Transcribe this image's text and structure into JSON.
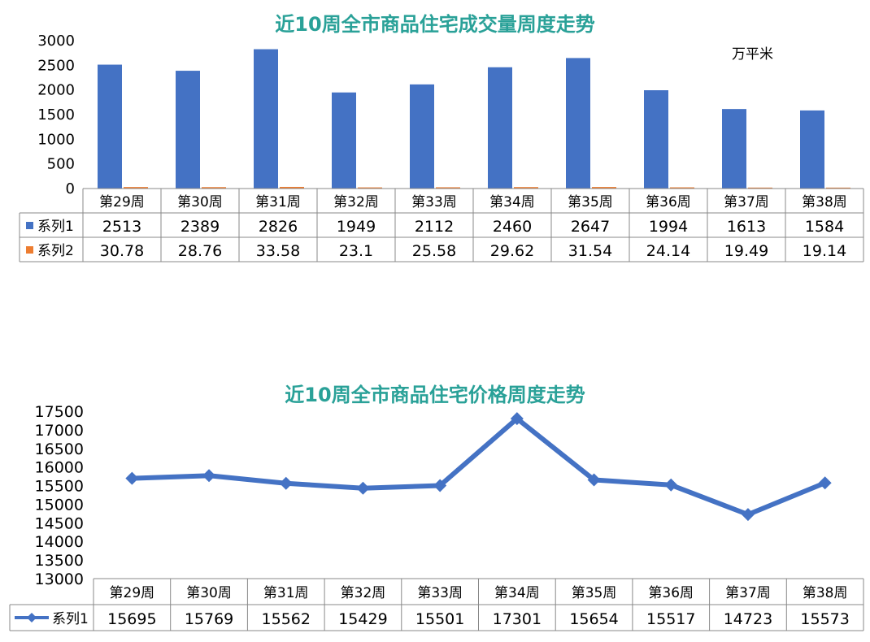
{
  "chart_data": [
    {
      "type": "bar",
      "title": "近10周全市商品住宅成交量周度走势",
      "unit": "万平米",
      "categories": [
        "第29周",
        "第30周",
        "第31周",
        "第32周",
        "第33周",
        "第34周",
        "第35周",
        "第36周",
        "第37周",
        "第38周"
      ],
      "series": [
        {
          "name": "系列1",
          "color": "#4472c4",
          "values": [
            2513,
            2389,
            2826,
            1949,
            2112,
            2460,
            2647,
            1994,
            1613,
            1584
          ]
        },
        {
          "name": "系列2",
          "color": "#ed7d31",
          "values": [
            "30.78",
            "28.76",
            "33.58",
            "23.1",
            "25.58",
            "29.62",
            "31.54",
            "24.14",
            "19.49",
            "19.14"
          ]
        }
      ],
      "ylim": [
        0,
        3000
      ],
      "yticks": [
        0,
        500,
        1000,
        1500,
        2000,
        2500,
        3000
      ],
      "grid": false,
      "legend": "data-table"
    },
    {
      "type": "line",
      "title": "近10周全市商品住宅价格周度走势",
      "categories": [
        "第29周",
        "第30周",
        "第31周",
        "第32周",
        "第33周",
        "第34周",
        "第35周",
        "第36周",
        "第37周",
        "第38周"
      ],
      "series": [
        {
          "name": "系列1",
          "color": "#4472c4",
          "values": [
            15695,
            15769,
            15562,
            15429,
            15501,
            17301,
            15654,
            15517,
            14723,
            15573
          ]
        }
      ],
      "ylim": [
        13000,
        17500
      ],
      "yticks": [
        13000,
        13500,
        14000,
        14500,
        15000,
        15500,
        16000,
        16500,
        17000,
        17500
      ],
      "grid": false,
      "legend": "data-table"
    }
  ]
}
